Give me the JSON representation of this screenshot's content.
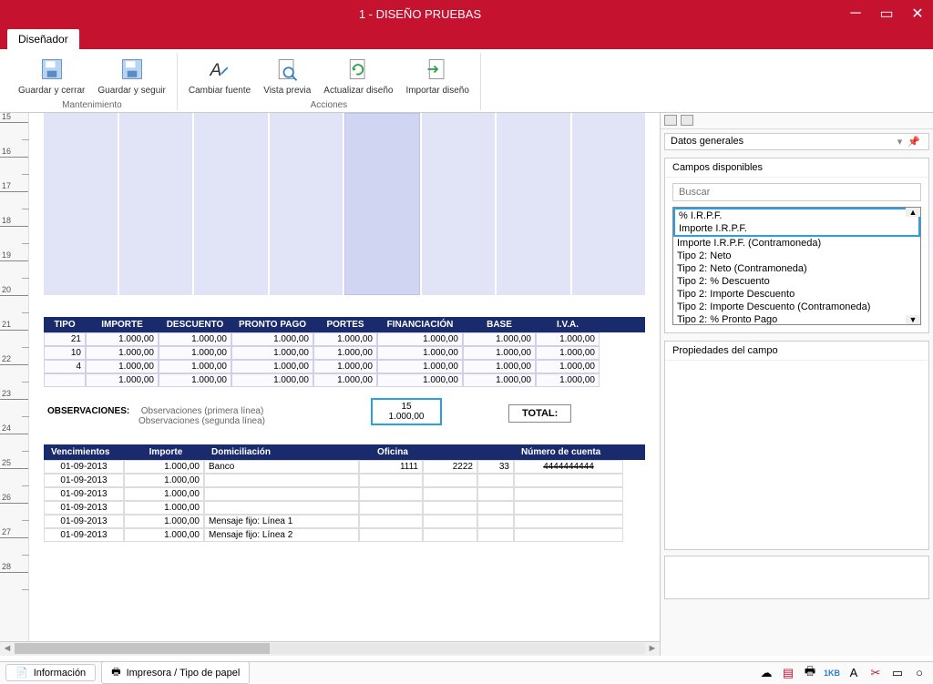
{
  "window": {
    "title": "1 - DISEÑO PRUEBAS"
  },
  "ribbon": {
    "tab": "Diseñador",
    "groups": {
      "mantenimiento": {
        "title": "Mantenimiento",
        "guardar_cerrar": "Guardar y cerrar",
        "guardar_seguir": "Guardar y seguir"
      },
      "acciones": {
        "title": "Acciones",
        "cambiar_fuente": "Cambiar fuente",
        "vista_previa": "Vista previa",
        "actualizar": "Actualizar diseño",
        "importar": "Importar diseño"
      }
    }
  },
  "ruler": {
    "marks": [
      15,
      16,
      17,
      18,
      19,
      20,
      21,
      22,
      23,
      24,
      25,
      26,
      27,
      28
    ]
  },
  "table1": {
    "headers": [
      "TIPO",
      "IMPORTE",
      "DESCUENTO",
      "PRONTO PAGO",
      "PORTES",
      "FINANCIACIÓN",
      "BASE",
      "I.V.A."
    ],
    "rows": [
      [
        "21",
        "1.000,00",
        "1.000,00",
        "1.000,00",
        "1.000,00",
        "1.000,00",
        "1.000,00",
        "1.000,00"
      ],
      [
        "10",
        "1.000,00",
        "1.000,00",
        "1.000,00",
        "1.000,00",
        "1.000,00",
        "1.000,00",
        "1.000,00"
      ],
      [
        "4",
        "1.000,00",
        "1.000,00",
        "1.000,00",
        "1.000,00",
        "1.000,00",
        "1.000,00",
        "1.000,00"
      ],
      [
        "",
        "1.000,00",
        "1.000,00",
        "1.000,00",
        "1.000,00",
        "1.000,00",
        "1.000,00",
        "1.000,00"
      ]
    ]
  },
  "obs": {
    "label": "OBSERVACIONES:",
    "line1": "Observaciones (primera línea)",
    "line2": "Observaciones (segunda línea)"
  },
  "selbox": {
    "a": "15",
    "b": "1.000,00"
  },
  "total": "TOTAL:",
  "table2": {
    "headers": {
      "venc": "Vencimientos",
      "imp": "Importe",
      "dom": "Domiciliación",
      "ofi": "Oficina",
      "cuenta": "Número de cuenta"
    },
    "rows": [
      {
        "d": "01-09-2013",
        "i": "1.000,00",
        "dom": "Banco",
        "a": "1111",
        "b": "2222",
        "c": "33",
        "n": "4444444444"
      },
      {
        "d": "01-09-2013",
        "i": "1.000,00"
      },
      {
        "d": "01-09-2013",
        "i": "1.000,00"
      },
      {
        "d": "01-09-2013",
        "i": "1.000,00"
      },
      {
        "d": "01-09-2013",
        "i": "1.000,00",
        "dom": "Mensaje fijo: Línea 1"
      },
      {
        "d": "01-09-2013",
        "i": "1.000,00",
        "dom": "Mensaje fijo: Línea 2"
      }
    ]
  },
  "side": {
    "dropdown": "Datos generales",
    "campos_title": "Campos disponibles",
    "search_placeholder": "Buscar",
    "fields": [
      "% I.R.P.F.",
      "Importe I.R.P.F.",
      "Importe I.R.P.F. (Contramoneda)",
      "Tipo 2: Neto",
      "Tipo 2: Neto (Contramoneda)",
      "Tipo 2: % Descuento",
      "Tipo 2: Importe Descuento",
      "Tipo 2: Importe Descuento (Contramoneda)",
      "Tipo 2: % Pronto Pago"
    ],
    "props_title": "Propiedades del campo"
  },
  "status": {
    "info": "Información",
    "printer": "Impresora / Tipo de papel"
  },
  "colors": {
    "brand": "#c4122f",
    "navy": "#1a2b6d",
    "lavender": "#e0e4f6",
    "sel": "#2aa0e0"
  }
}
